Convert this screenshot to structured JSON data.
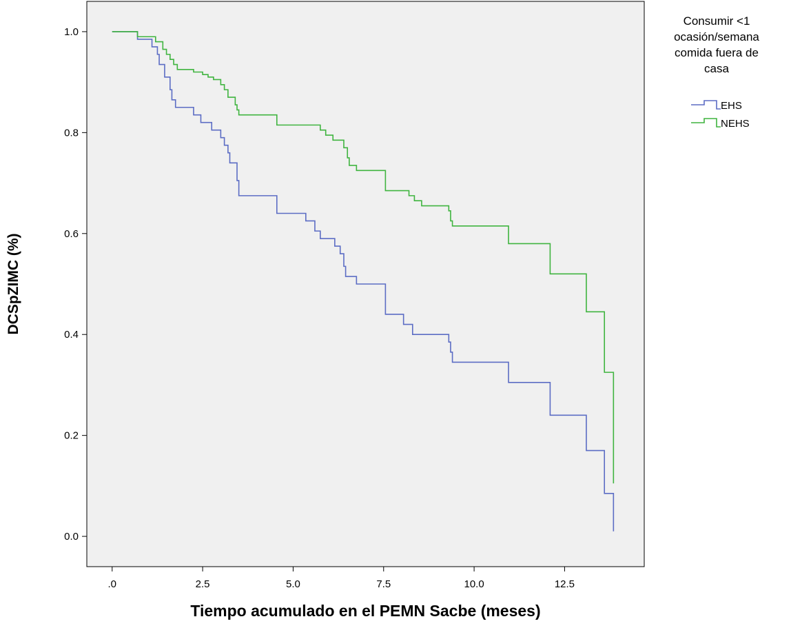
{
  "chart_data": {
    "type": "line",
    "title": "",
    "xlabel": "Tiempo acumulado en el PEMN Sacbe (meses)",
    "ylabel": "DCSpZIMC (%)",
    "xlim": [
      -0.7,
      14.7
    ],
    "ylim": [
      -0.06,
      1.06
    ],
    "xticks": [
      0,
      2.5,
      5.0,
      7.5,
      10.0,
      12.5
    ],
    "xtick_labels": [
      ".0",
      "2.5",
      "5.0",
      "7.5",
      "10.0",
      "12.5"
    ],
    "yticks": [
      0.0,
      0.2,
      0.4,
      0.6,
      0.8,
      1.0
    ],
    "ytick_labels": [
      "0.0",
      "0.2",
      "0.4",
      "0.6",
      "0.8",
      "1.0"
    ],
    "grid": false,
    "background_color": "#f0f0f0",
    "legend": {
      "title": "Consumir <1 ocasión/semana comida fuera de casa",
      "title_lines": [
        "Consumir <1",
        "ocasión/semana",
        "comida fuera de",
        "casa"
      ],
      "position": "right"
    },
    "series": [
      {
        "name": "EHS",
        "color": "#5b6cc4",
        "steps": [
          [
            0.0,
            1.0
          ],
          [
            0.7,
            0.985
          ],
          [
            1.1,
            0.97
          ],
          [
            1.25,
            0.955
          ],
          [
            1.3,
            0.935
          ],
          [
            1.45,
            0.91
          ],
          [
            1.6,
            0.885
          ],
          [
            1.65,
            0.865
          ],
          [
            1.75,
            0.85
          ],
          [
            2.25,
            0.835
          ],
          [
            2.45,
            0.82
          ],
          [
            2.75,
            0.805
          ],
          [
            3.0,
            0.79
          ],
          [
            3.1,
            0.775
          ],
          [
            3.2,
            0.76
          ],
          [
            3.25,
            0.74
          ],
          [
            3.45,
            0.705
          ],
          [
            3.5,
            0.675
          ],
          [
            4.55,
            0.64
          ],
          [
            5.35,
            0.625
          ],
          [
            5.6,
            0.605
          ],
          [
            5.75,
            0.59
          ],
          [
            6.15,
            0.575
          ],
          [
            6.3,
            0.56
          ],
          [
            6.4,
            0.535
          ],
          [
            6.45,
            0.515
          ],
          [
            6.75,
            0.5
          ],
          [
            7.55,
            0.44
          ],
          [
            8.05,
            0.42
          ],
          [
            8.3,
            0.4
          ],
          [
            9.3,
            0.385
          ],
          [
            9.35,
            0.365
          ],
          [
            9.4,
            0.345
          ],
          [
            10.95,
            0.305
          ],
          [
            12.1,
            0.24
          ],
          [
            13.1,
            0.17
          ],
          [
            13.6,
            0.085
          ],
          [
            13.85,
            0.01
          ]
        ]
      },
      {
        "name": "NEHS",
        "color": "#3fb43f",
        "steps": [
          [
            0.0,
            1.0
          ],
          [
            0.7,
            0.99
          ],
          [
            1.2,
            0.98
          ],
          [
            1.4,
            0.965
          ],
          [
            1.5,
            0.955
          ],
          [
            1.6,
            0.945
          ],
          [
            1.7,
            0.935
          ],
          [
            1.8,
            0.925
          ],
          [
            2.25,
            0.92
          ],
          [
            2.5,
            0.915
          ],
          [
            2.65,
            0.91
          ],
          [
            2.8,
            0.905
          ],
          [
            3.0,
            0.895
          ],
          [
            3.1,
            0.885
          ],
          [
            3.2,
            0.87
          ],
          [
            3.4,
            0.855
          ],
          [
            3.45,
            0.845
          ],
          [
            3.5,
            0.835
          ],
          [
            4.55,
            0.815
          ],
          [
            5.75,
            0.805
          ],
          [
            5.9,
            0.795
          ],
          [
            6.1,
            0.785
          ],
          [
            6.4,
            0.77
          ],
          [
            6.5,
            0.75
          ],
          [
            6.55,
            0.735
          ],
          [
            6.75,
            0.725
          ],
          [
            7.55,
            0.685
          ],
          [
            8.2,
            0.675
          ],
          [
            8.35,
            0.665
          ],
          [
            8.55,
            0.655
          ],
          [
            9.3,
            0.645
          ],
          [
            9.35,
            0.625
          ],
          [
            9.4,
            0.615
          ],
          [
            10.95,
            0.58
          ],
          [
            12.1,
            0.52
          ],
          [
            13.1,
            0.445
          ],
          [
            13.6,
            0.325
          ],
          [
            13.85,
            0.105
          ]
        ]
      }
    ]
  }
}
